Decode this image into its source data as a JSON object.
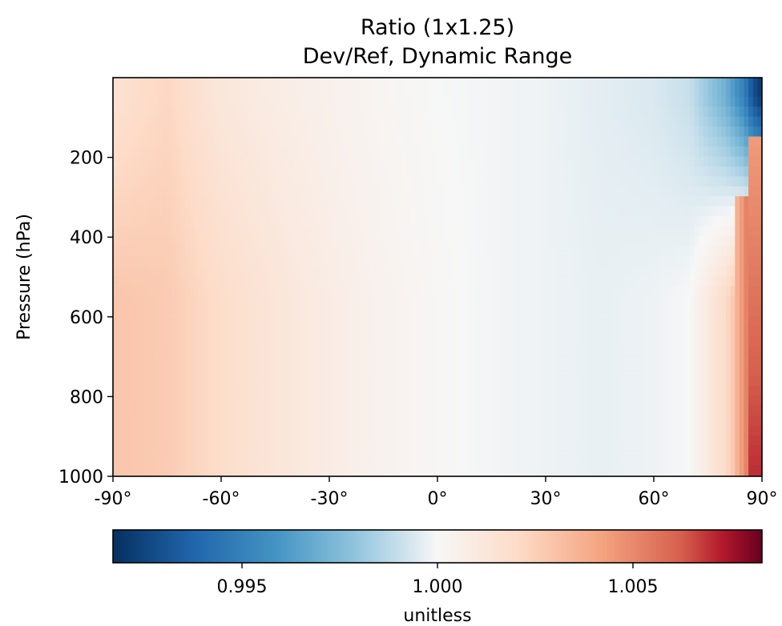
{
  "chart_data": {
    "type": "heatmap",
    "title": "Ratio (1x1.25)",
    "subtitle": "Dev/Ref, Dynamic Range",
    "xlabel": "",
    "ylabel": "Pressure (hPa)",
    "xlim": [
      -90,
      90
    ],
    "ylim": [
      1000,
      0
    ],
    "x_ticks": [
      -90,
      -60,
      -30,
      0,
      30,
      60,
      90
    ],
    "x_tick_labels": [
      "-90°",
      "-60°",
      "-30°",
      "0°",
      "30°",
      "60°",
      "90°"
    ],
    "y_ticks": [
      200,
      400,
      600,
      800,
      1000
    ],
    "y_tick_labels": [
      "200",
      "400",
      "600",
      "800",
      "1000"
    ],
    "colormap": "RdBu_r",
    "colors": {
      "low": "#053061",
      "mid": "#f7f7f7",
      "high": "#67001f"
    },
    "colorbar": {
      "label": "unitless",
      "range": [
        0.9917,
        1.0083
      ],
      "ticks": [
        0.995,
        1.0,
        1.005
      ],
      "tick_labels": [
        "0.995",
        "1.000",
        "1.005"
      ],
      "orientation": "horizontal",
      "placement": "bottom"
    },
    "description_values": {
      "lat_bins": [
        -90,
        -75,
        -60,
        -45,
        -30,
        -15,
        0,
        15,
        30,
        45,
        60,
        70,
        80,
        85,
        87.5,
        90
      ],
      "ratio_near_surface": [
        1.0029,
        1.0027,
        1.0019,
        1.0013,
        1.0008,
        1.0004,
        1.0001,
        0.9999,
        0.9998,
        0.9997,
        0.9998,
        1.0,
        1.002,
        1.004,
        1.005,
        1.006
      ],
      "ratio_upper_level": [
        1.0016,
        1.0022,
        1.0012,
        1.0008,
        1.0005,
        1.0002,
        1.0,
        0.9999,
        0.9998,
        0.9996,
        0.9994,
        0.999,
        0.997,
        0.995,
        0.993,
        0.992
      ]
    }
  }
}
